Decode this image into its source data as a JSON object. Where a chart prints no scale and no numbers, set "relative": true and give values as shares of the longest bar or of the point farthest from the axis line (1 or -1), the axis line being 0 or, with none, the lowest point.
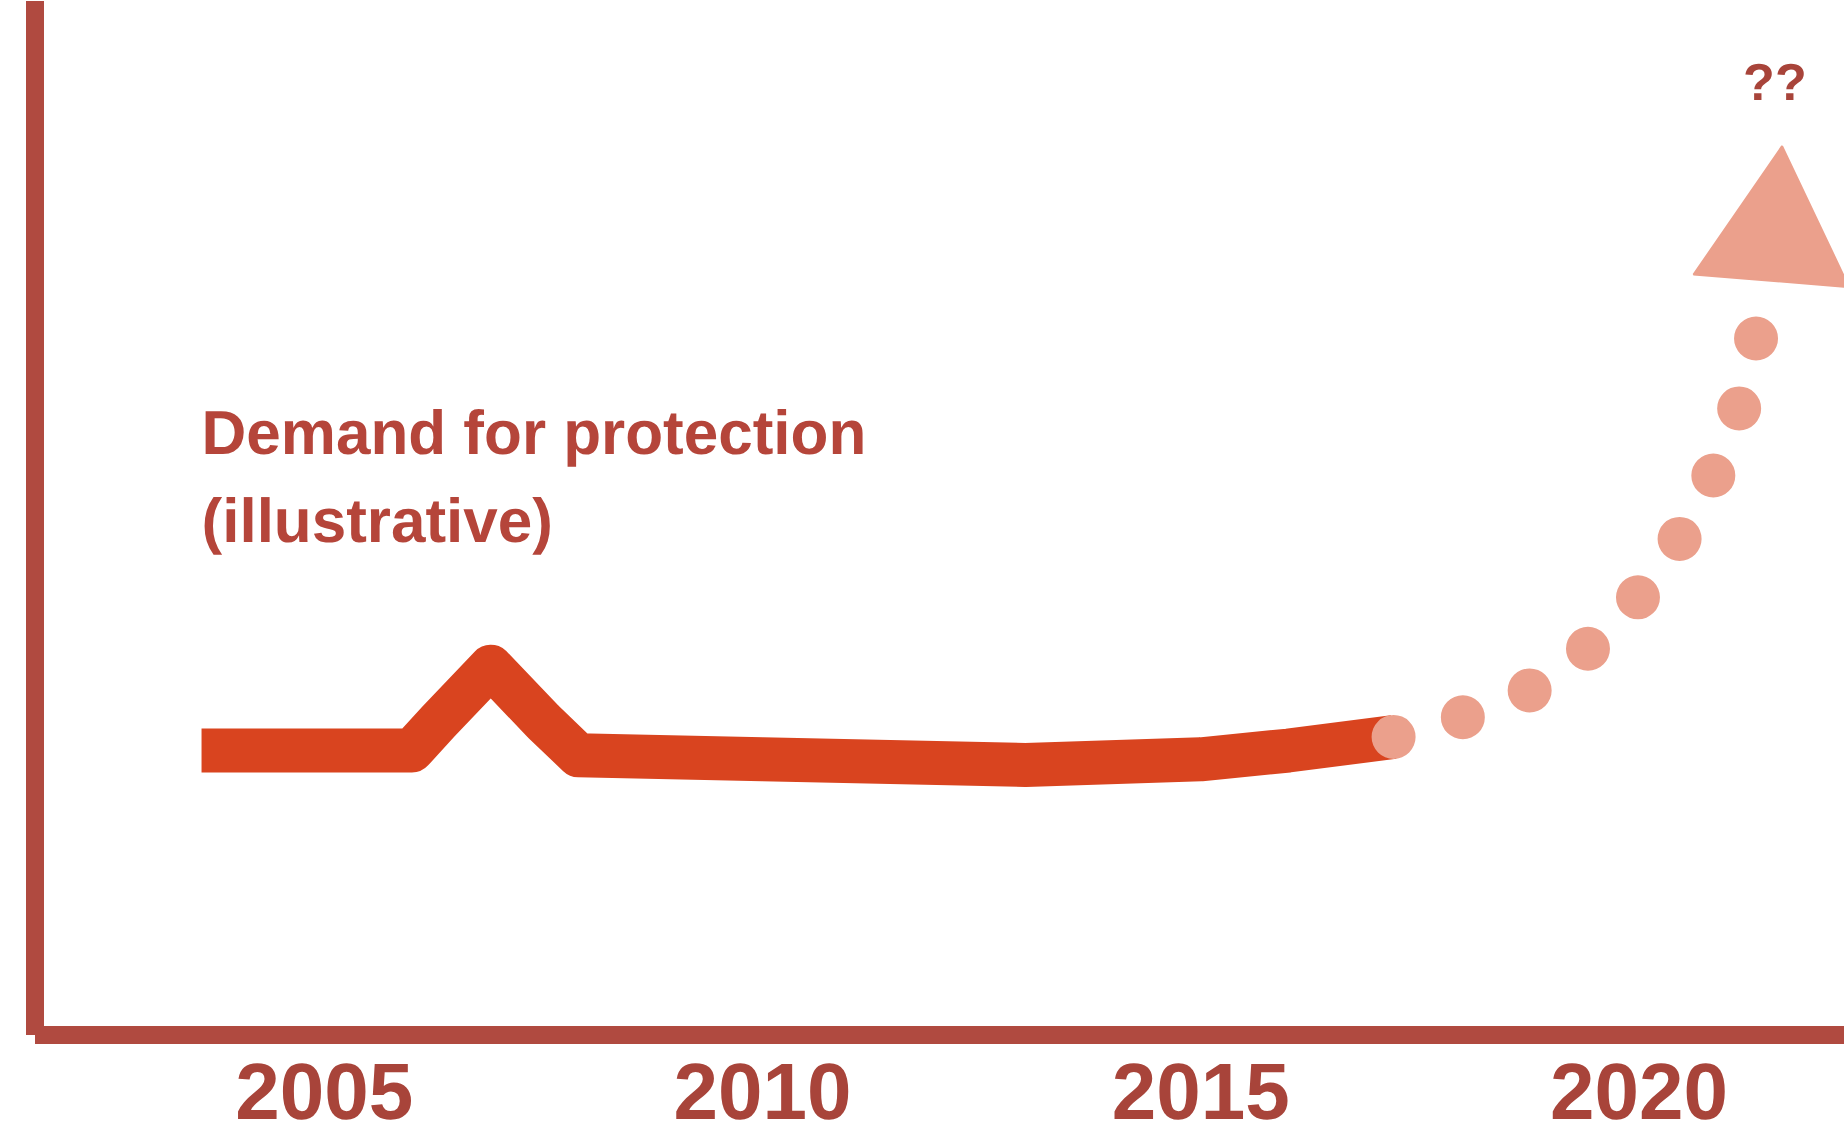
{
  "chart_data": {
    "type": "line",
    "title": "Demand for protection\n(illustrative)",
    "relative": true,
    "xlim": [
      2001.7,
      2022.35
    ],
    "xticks": [
      2005,
      2010,
      2015,
      2020
    ],
    "grid": false,
    "series": [
      {
        "color": "#d9441f",
        "line_style": "solid",
        "x": [
          2003.6,
          2006.0,
          2006.3,
          2006.9,
          2007.5,
          2007.9,
          2010,
          2013,
          2015,
          2016,
          2017.2
        ],
        "values": [
          0.356,
          0.356,
          0.392,
          0.461,
          0.392,
          0.35,
          0.345,
          0.338,
          0.345,
          0.356,
          0.373
        ]
      },
      {
        "color": "#eba08c",
        "line_style": "dotted",
        "x": [
          2017.2,
          2018.0,
          2018.86,
          2019.59,
          2020.23,
          2020.73,
          2021.1,
          2021.32,
          2021.5
        ],
        "values": [
          0.373,
          0.398,
          0.436,
          0.498,
          0.578,
          0.67,
          0.765,
          0.864,
          0.956
        ]
      },
      {
        "type": "scatter",
        "marker": "triangle",
        "color": "#eba08c",
        "x": [
          2021.55
        ],
        "values": [
          1
        ]
      }
    ],
    "annotations": [
      "??"
    ]
  }
}
